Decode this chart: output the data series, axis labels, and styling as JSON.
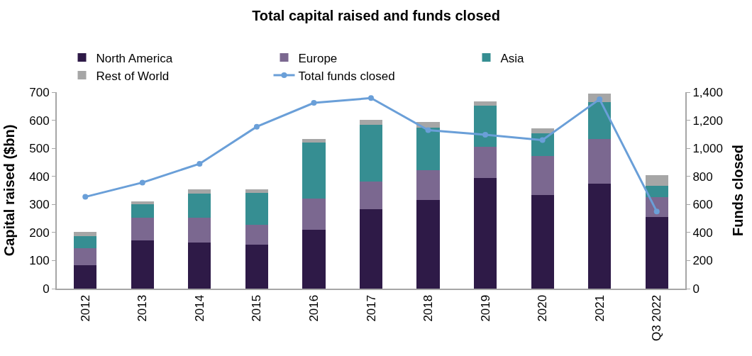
{
  "chart_data": {
    "type": "bar",
    "title": "Total capital raised and funds closed",
    "ylabel": "Capital raised ($bn)",
    "y2label": "Funds closed",
    "categories": [
      "2012",
      "2013",
      "2014",
      "2015",
      "2016",
      "2017",
      "2018",
      "2019",
      "2020",
      "2021",
      "Q3 2022"
    ],
    "stacked": true,
    "series": [
      {
        "name": "North America",
        "color": "#2e1a47",
        "values": [
          83,
          173,
          164,
          157,
          209,
          283,
          317,
          394,
          333,
          373,
          256
        ]
      },
      {
        "name": "Europe",
        "color": "#7b6890",
        "values": [
          62,
          79,
          88,
          71,
          111,
          98,
          104,
          111,
          140,
          161,
          69
        ]
      },
      {
        "name": "Asia",
        "color": "#368e92",
        "values": [
          43,
          48,
          86,
          113,
          200,
          204,
          153,
          146,
          80,
          130,
          42
        ]
      },
      {
        "name": "Rest of World",
        "color": "#a6a6a6",
        "values": [
          14,
          10,
          17,
          14,
          14,
          16,
          20,
          17,
          18,
          31,
          37
        ]
      },
      {
        "name": "Total funds closed",
        "type": "line",
        "axis": "y2",
        "color": "#6a9fd8",
        "marker": "circle",
        "values": [
          654,
          756,
          890,
          1154,
          1324,
          1358,
          1129,
          1097,
          1059,
          1350,
          550
        ]
      }
    ],
    "ylim": [
      0,
      700
    ],
    "yticks": [
      0,
      100,
      200,
      300,
      400,
      500,
      600,
      700
    ],
    "y2lim": [
      0,
      1400
    ],
    "y2ticks": [
      0,
      200,
      400,
      600,
      800,
      {
        "value": 1000,
        "label": "1,000"
      },
      {
        "value": 1200,
        "label": "1,200"
      },
      {
        "value": 1400,
        "label": "1,400"
      }
    ],
    "legend": "top"
  }
}
